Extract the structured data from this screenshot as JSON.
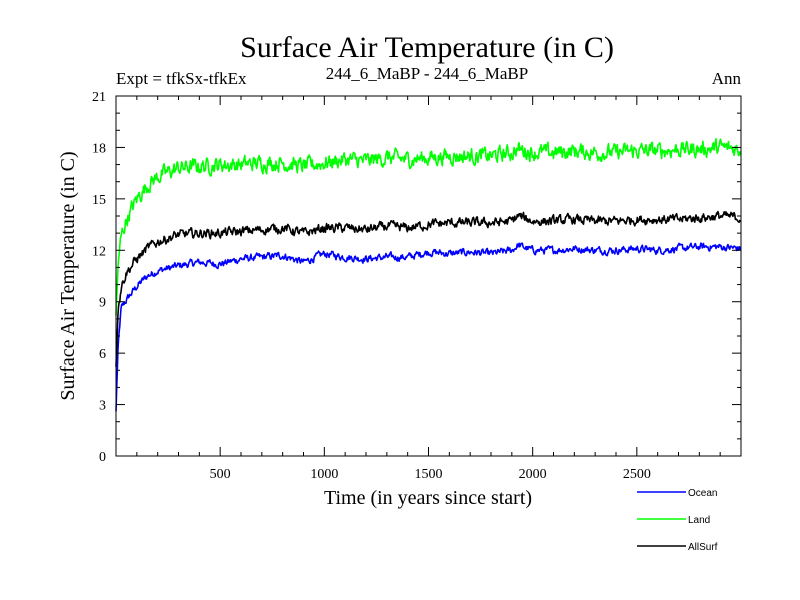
{
  "chart_data": {
    "type": "line",
    "title": "Surface Air Temperature (in C)",
    "subtitle_left": "Expt = tfkSx-tfkEx",
    "subtitle_center": "244_6_MaBP - 244_6_MaBP",
    "subtitle_right": "Ann",
    "xlabel": "Time (in years since start)",
    "ylabel": "Surface Air Temperature (in C)",
    "xlim": [
      0,
      3000
    ],
    "ylim": [
      0,
      21
    ],
    "xticks": [
      500,
      1000,
      1500,
      2000,
      2500
    ],
    "yticks": [
      0,
      3,
      6,
      9,
      12,
      15,
      18,
      21
    ],
    "legend_position": "bottom-right",
    "series": [
      {
        "name": "Ocean",
        "color": "#0000ff",
        "x": [
          0,
          10,
          25,
          50,
          100,
          150,
          200,
          300,
          400,
          500,
          600,
          700,
          800,
          900,
          1000,
          1100,
          1200,
          1300,
          1400,
          1500,
          1600,
          1700,
          1800,
          1900,
          1930,
          2000,
          2100,
          2200,
          2300,
          2400,
          2500,
          2600,
          2700,
          2800,
          2900,
          3000
        ],
        "values": [
          2.6,
          6.5,
          8.6,
          9.1,
          9.9,
          10.5,
          10.8,
          11.1,
          11.3,
          11.2,
          11.5,
          11.6,
          11.7,
          11.3,
          11.8,
          11.6,
          11.5,
          11.6,
          11.6,
          11.9,
          11.8,
          11.9,
          11.8,
          12.0,
          12.3,
          12.0,
          12.0,
          12.1,
          12.0,
          12.0,
          12.1,
          12.0,
          12.1,
          12.2,
          12.2,
          12.1
        ]
      },
      {
        "name": "Land",
        "color": "#00ff00",
        "x": [
          0,
          10,
          25,
          50,
          100,
          150,
          200,
          300,
          400,
          500,
          600,
          700,
          800,
          900,
          1000,
          1100,
          1200,
          1300,
          1400,
          1500,
          1600,
          1700,
          1800,
          1900,
          1930,
          2000,
          2100,
          2200,
          2300,
          2400,
          2500,
          2600,
          2700,
          2800,
          2900,
          3000
        ],
        "values": [
          8.2,
          11.2,
          12.8,
          13.8,
          15.0,
          15.8,
          16.3,
          16.8,
          16.9,
          17.0,
          17.0,
          17.1,
          17.1,
          16.9,
          17.1,
          17.3,
          17.2,
          17.4,
          17.3,
          17.4,
          17.5,
          17.5,
          17.5,
          17.7,
          17.9,
          17.7,
          17.7,
          17.8,
          17.7,
          17.7,
          17.8,
          17.8,
          17.9,
          17.9,
          18.0,
          17.9
        ]
      },
      {
        "name": "AllSurf",
        "color": "#000000",
        "x": [
          0,
          10,
          25,
          50,
          100,
          150,
          200,
          300,
          400,
          500,
          600,
          700,
          800,
          900,
          1000,
          1100,
          1200,
          1300,
          1400,
          1500,
          1600,
          1700,
          1800,
          1900,
          1930,
          2000,
          2100,
          2200,
          2300,
          2400,
          2500,
          2600,
          2700,
          2800,
          2900,
          3000
        ],
        "values": [
          5.2,
          8.5,
          9.9,
          10.7,
          11.5,
          12.1,
          12.5,
          12.9,
          13.0,
          13.0,
          13.1,
          13.2,
          13.3,
          13.0,
          13.3,
          13.3,
          13.2,
          13.4,
          13.3,
          13.5,
          13.6,
          13.6,
          13.6,
          13.7,
          14.0,
          13.7,
          13.7,
          13.8,
          13.7,
          13.7,
          13.8,
          13.8,
          13.8,
          13.9,
          14.0,
          13.9
        ]
      }
    ]
  }
}
